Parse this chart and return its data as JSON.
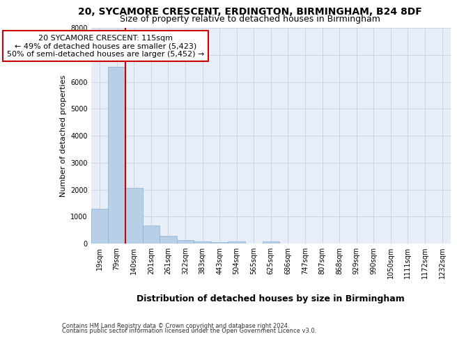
{
  "title1": "20, SYCAMORE CRESCENT, ERDINGTON, BIRMINGHAM, B24 8DF",
  "title2": "Size of property relative to detached houses in Birmingham",
  "xlabel": "Distribution of detached houses by size in Birmingham",
  "ylabel": "Number of detached properties",
  "footer1": "Contains HM Land Registry data © Crown copyright and database right 2024.",
  "footer2": "Contains public sector information licensed under the Open Government Licence v3.0.",
  "bar_labels": [
    "19sqm",
    "79sqm",
    "140sqm",
    "201sqm",
    "261sqm",
    "322sqm",
    "383sqm",
    "443sqm",
    "504sqm",
    "565sqm",
    "625sqm",
    "686sqm",
    "747sqm",
    "807sqm",
    "868sqm",
    "929sqm",
    "990sqm",
    "1050sqm",
    "1111sqm",
    "1172sqm",
    "1232sqm"
  ],
  "bar_values": [
    1300,
    6550,
    2060,
    680,
    295,
    140,
    90,
    55,
    75,
    0,
    65,
    0,
    0,
    0,
    0,
    0,
    0,
    0,
    0,
    0,
    0
  ],
  "bar_color": "#b8cfe8",
  "bar_edge_color": "#8aafd4",
  "vline_x_index": 1.5,
  "vline_color": "#cc0000",
  "annotation_text": "20 SYCAMORE CRESCENT: 115sqm\n← 49% of detached houses are smaller (5,423)\n50% of semi-detached houses are larger (5,452) →",
  "annotation_box_color": "#cc0000",
  "ylim": [
    0,
    8000
  ],
  "yticks": [
    0,
    1000,
    2000,
    3000,
    4000,
    5000,
    6000,
    7000,
    8000
  ],
  "grid_color": "#ccd5e8",
  "bg_color": "#e8eef8",
  "title1_fontsize": 10,
  "title2_fontsize": 9,
  "xlabel_fontsize": 9,
  "ylabel_fontsize": 8,
  "tick_fontsize": 7,
  "footer_fontsize": 6,
  "annotation_fontsize": 8
}
